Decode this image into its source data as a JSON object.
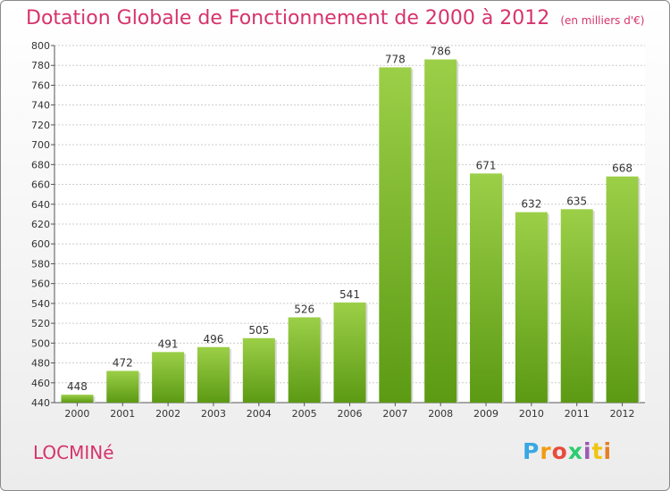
{
  "title": "Dotation Globale de Fonctionnement de 2000 à 2012",
  "unit_note": "(en milliers d'€)",
  "commune": "LOCMINé",
  "logo": {
    "text": "Proxiti",
    "colors": [
      "#3aa7e3",
      "#f39c12",
      "#e74c3c",
      "#2ecc71",
      "#9b59b6",
      "#f1c40f",
      "#e67e22"
    ]
  },
  "colors": {
    "title": "#d6336c",
    "bar_top": "#9ccf48",
    "bar_bottom": "#5c9a14",
    "grid": "#cccccc"
  },
  "chart_data": {
    "type": "bar",
    "title": "Dotation Globale de Fonctionnement de 2000 à 2012",
    "subtitle": "(en milliers d'€)",
    "categories": [
      "2000",
      "2001",
      "2002",
      "2003",
      "2004",
      "2005",
      "2006",
      "2007",
      "2008",
      "2009",
      "2010",
      "2011",
      "2012"
    ],
    "values": [
      448,
      472,
      491,
      496,
      505,
      526,
      541,
      778,
      786,
      671,
      632,
      635,
      668
    ],
    "ylim": [
      440,
      800
    ],
    "ytick_step": 20,
    "grid": true,
    "legend": false
  }
}
